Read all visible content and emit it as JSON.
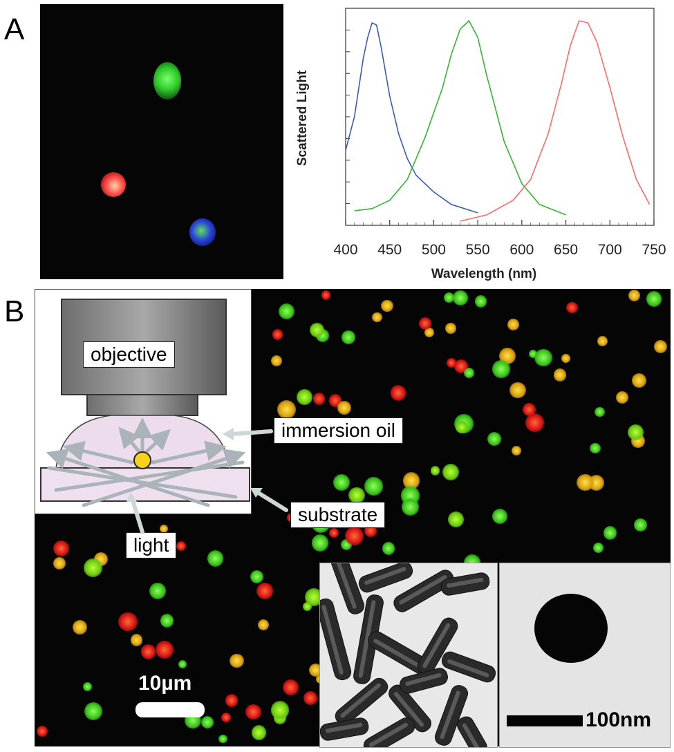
{
  "panels": {
    "a_label": "A",
    "b_label": "B"
  },
  "panel_a_image": {
    "particles": [
      {
        "name": "green-particle",
        "color": "#3fd23a"
      },
      {
        "name": "red-particle",
        "color": "#ff4a4a"
      },
      {
        "name": "blue-particle",
        "color": "#2030d0"
      }
    ]
  },
  "chart_data": {
    "type": "line",
    "xlabel": "Wavelength (nm)",
    "ylabel": "Scattered Light",
    "xlim": [
      400,
      750
    ],
    "ylim": [
      0,
      1
    ],
    "x_ticks": [
      "400",
      "450",
      "500",
      "550",
      "600",
      "650",
      "700",
      "750"
    ],
    "y_tick_labels": false,
    "grid": false,
    "series": [
      {
        "color": "#3a5bb8",
        "x": [
          400,
          410,
          420,
          425,
          430,
          435,
          440,
          450,
          460,
          470,
          480,
          500,
          520,
          550
        ],
        "y": [
          0.36,
          0.52,
          0.8,
          0.9,
          0.97,
          0.96,
          0.86,
          0.62,
          0.44,
          0.32,
          0.24,
          0.16,
          0.1,
          0.06
        ]
      },
      {
        "color": "#35b535",
        "x": [
          410,
          430,
          450,
          470,
          490,
          510,
          520,
          530,
          540,
          550,
          560,
          580,
          600,
          620,
          650
        ],
        "y": [
          0.07,
          0.08,
          0.12,
          0.22,
          0.42,
          0.66,
          0.82,
          0.94,
          0.98,
          0.9,
          0.72,
          0.4,
          0.2,
          0.1,
          0.05
        ]
      },
      {
        "color": "#ff6a6a",
        "x": [
          530,
          560,
          590,
          610,
          630,
          645,
          655,
          665,
          675,
          685,
          700,
          715,
          730,
          745
        ],
        "y": [
          0.02,
          0.05,
          0.12,
          0.22,
          0.44,
          0.68,
          0.86,
          0.98,
          0.97,
          0.88,
          0.66,
          0.42,
          0.22,
          0.1
        ]
      }
    ]
  },
  "schematic": {
    "objective_label": "objective",
    "immersion_oil_label": "immersion oil",
    "substrate_label": "substrate",
    "light_label": "light"
  },
  "scale_bar_main": "10µm",
  "scale_bar_tem": "100nm"
}
